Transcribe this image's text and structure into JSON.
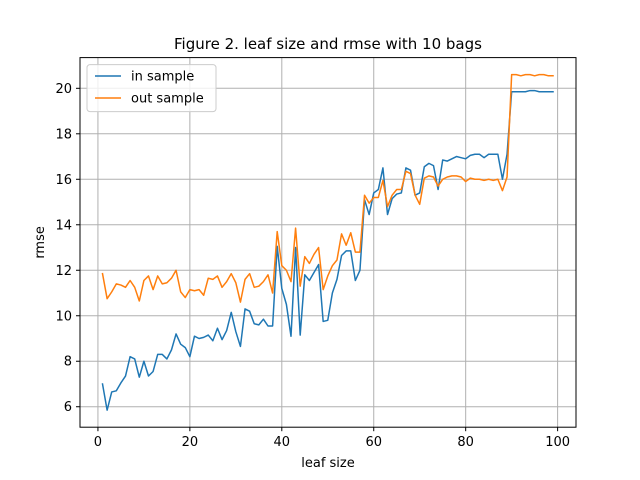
{
  "chart_data": {
    "type": "line",
    "title": "Figure 2. leaf size and rmse with 10 bags",
    "xlabel": "leaf size",
    "ylabel": "rmse",
    "xlim": [
      -3.9,
      104.0
    ],
    "ylim": [
      5.1,
      21.35
    ],
    "xticks": [
      0,
      20,
      40,
      60,
      80,
      100
    ],
    "yticks": [
      6,
      8,
      10,
      12,
      14,
      16,
      18,
      20
    ],
    "grid": true,
    "legend_position": "upper-left",
    "x": [
      1,
      2,
      3,
      4,
      5,
      6,
      7,
      8,
      9,
      10,
      11,
      12,
      13,
      14,
      15,
      16,
      17,
      18,
      19,
      20,
      21,
      22,
      23,
      24,
      25,
      26,
      27,
      28,
      29,
      30,
      31,
      32,
      33,
      34,
      35,
      36,
      37,
      38,
      39,
      40,
      41,
      42,
      43,
      44,
      45,
      46,
      47,
      48,
      49,
      50,
      51,
      52,
      53,
      54,
      55,
      56,
      57,
      58,
      59,
      60,
      61,
      62,
      63,
      64,
      65,
      66,
      67,
      68,
      69,
      70,
      71,
      72,
      73,
      74,
      75,
      76,
      77,
      78,
      79,
      80,
      81,
      82,
      83,
      84,
      85,
      86,
      87,
      88,
      89,
      90,
      91,
      92,
      93,
      94,
      95,
      96,
      97,
      98,
      99
    ],
    "series": [
      {
        "name": "in sample",
        "color": "#1f77b4",
        "values": [
          7.0,
          5.85,
          6.65,
          6.7,
          7.05,
          7.35,
          8.2,
          8.1,
          7.3,
          8.0,
          7.35,
          7.55,
          8.3,
          8.3,
          8.1,
          8.5,
          9.2,
          8.75,
          8.6,
          8.2,
          9.1,
          9.0,
          9.05,
          9.15,
          8.9,
          9.45,
          8.95,
          9.35,
          10.15,
          9.3,
          8.65,
          10.3,
          10.2,
          9.65,
          9.6,
          9.85,
          9.55,
          9.55,
          13.05,
          11.2,
          10.5,
          9.1,
          13.0,
          9.15,
          11.8,
          11.55,
          11.9,
          12.25,
          9.75,
          9.8,
          11.0,
          11.6,
          12.65,
          12.85,
          12.85,
          11.55,
          12.0,
          15.1,
          14.45,
          15.4,
          15.55,
          16.5,
          14.45,
          15.15,
          15.35,
          15.4,
          16.5,
          16.4,
          15.3,
          15.4,
          16.55,
          16.7,
          16.6,
          15.55,
          16.85,
          16.8,
          16.9,
          17.0,
          16.95,
          16.9,
          17.05,
          17.1,
          17.1,
          16.95,
          17.1,
          17.1,
          17.1,
          16.0,
          17.1,
          19.85,
          19.85,
          19.85,
          19.85,
          19.9,
          19.9,
          19.85,
          19.85,
          19.85,
          19.85
        ]
      },
      {
        "name": "out sample",
        "color": "#ff7f0e",
        "values": [
          11.85,
          10.75,
          11.05,
          11.4,
          11.35,
          11.25,
          11.55,
          11.25,
          10.65,
          11.55,
          11.75,
          11.15,
          11.75,
          11.4,
          11.45,
          11.65,
          12.0,
          11.05,
          10.8,
          11.15,
          11.1,
          11.15,
          10.9,
          11.65,
          11.6,
          11.75,
          11.25,
          11.5,
          11.85,
          11.45,
          10.6,
          11.6,
          11.85,
          11.25,
          11.3,
          11.5,
          11.8,
          11.0,
          13.7,
          12.2,
          12.0,
          11.5,
          13.85,
          11.3,
          12.6,
          12.3,
          12.7,
          13.0,
          11.15,
          11.75,
          12.2,
          12.45,
          13.6,
          13.1,
          13.65,
          12.8,
          12.8,
          15.3,
          14.95,
          15.2,
          15.2,
          15.95,
          14.8,
          15.3,
          15.55,
          15.55,
          16.35,
          16.25,
          15.3,
          14.9,
          16.05,
          16.15,
          16.1,
          15.7,
          16.0,
          16.1,
          16.15,
          16.15,
          16.1,
          15.9,
          16.05,
          16.0,
          16.0,
          15.95,
          16.0,
          15.95,
          16.0,
          15.5,
          16.1,
          20.6,
          20.6,
          20.55,
          20.6,
          20.6,
          20.55,
          20.6,
          20.6,
          20.55,
          20.55
        ]
      }
    ]
  }
}
